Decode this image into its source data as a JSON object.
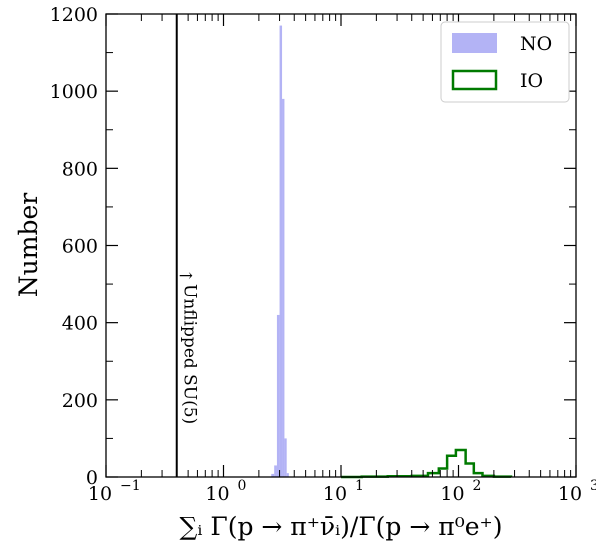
{
  "chart_data": {
    "type": "histogram",
    "xscale": "log",
    "xlim": [
      0.1,
      1000
    ],
    "ylim": [
      0,
      1200
    ],
    "xlabel": "∑ᵢ Γ(p → π⁺ν̄ᵢ)/Γ(p → π⁰e⁺)",
    "ylabel": "Number",
    "x_ticks": [
      {
        "value": 0.1,
        "base": "10",
        "exp": "−1"
      },
      {
        "value": 1,
        "base": "10",
        "exp": "0"
      },
      {
        "value": 10,
        "base": "10",
        "exp": "1"
      },
      {
        "value": 100,
        "base": "10",
        "exp": "2"
      },
      {
        "value": 1000,
        "base": "10",
        "exp": "3"
      }
    ],
    "y_ticks": [
      0,
      200,
      400,
      600,
      800,
      1000,
      1200
    ],
    "grid": false,
    "legend_position": "top-right",
    "series": [
      {
        "name": "NO",
        "style": "filled",
        "color": "#b3b3f5",
        "bins": [
          {
            "x0": 2.55,
            "x1": 2.7,
            "count": 8
          },
          {
            "x0": 2.7,
            "x1": 2.85,
            "count": 30
          },
          {
            "x0": 2.85,
            "x1": 3.0,
            "count": 420
          },
          {
            "x0": 3.0,
            "x1": 3.15,
            "count": 1170
          },
          {
            "x0": 3.15,
            "x1": 3.3,
            "count": 980
          },
          {
            "x0": 3.3,
            "x1": 3.45,
            "count": 100
          },
          {
            "x0": 3.45,
            "x1": 3.6,
            "count": 10
          }
        ]
      },
      {
        "name": "IO",
        "style": "step",
        "color": "#007a00",
        "bins": [
          {
            "x0": 10,
            "x1": 15,
            "count": 0
          },
          {
            "x0": 15,
            "x1": 25,
            "count": 1
          },
          {
            "x0": 25,
            "x1": 40,
            "count": 2
          },
          {
            "x0": 40,
            "x1": 55,
            "count": 3
          },
          {
            "x0": 55,
            "x1": 68,
            "count": 10
          },
          {
            "x0": 68,
            "x1": 80,
            "count": 22
          },
          {
            "x0": 80,
            "x1": 95,
            "count": 55
          },
          {
            "x0": 95,
            "x1": 115,
            "count": 70
          },
          {
            "x0": 115,
            "x1": 135,
            "count": 35
          },
          {
            "x0": 135,
            "x1": 160,
            "count": 10
          },
          {
            "x0": 160,
            "x1": 200,
            "count": 3
          },
          {
            "x0": 200,
            "x1": 280,
            "count": 1
          }
        ]
      }
    ],
    "vline": {
      "x": 0.4,
      "color": "#000000",
      "label": "Unflipped SU(5)",
      "arrow": "→"
    }
  }
}
